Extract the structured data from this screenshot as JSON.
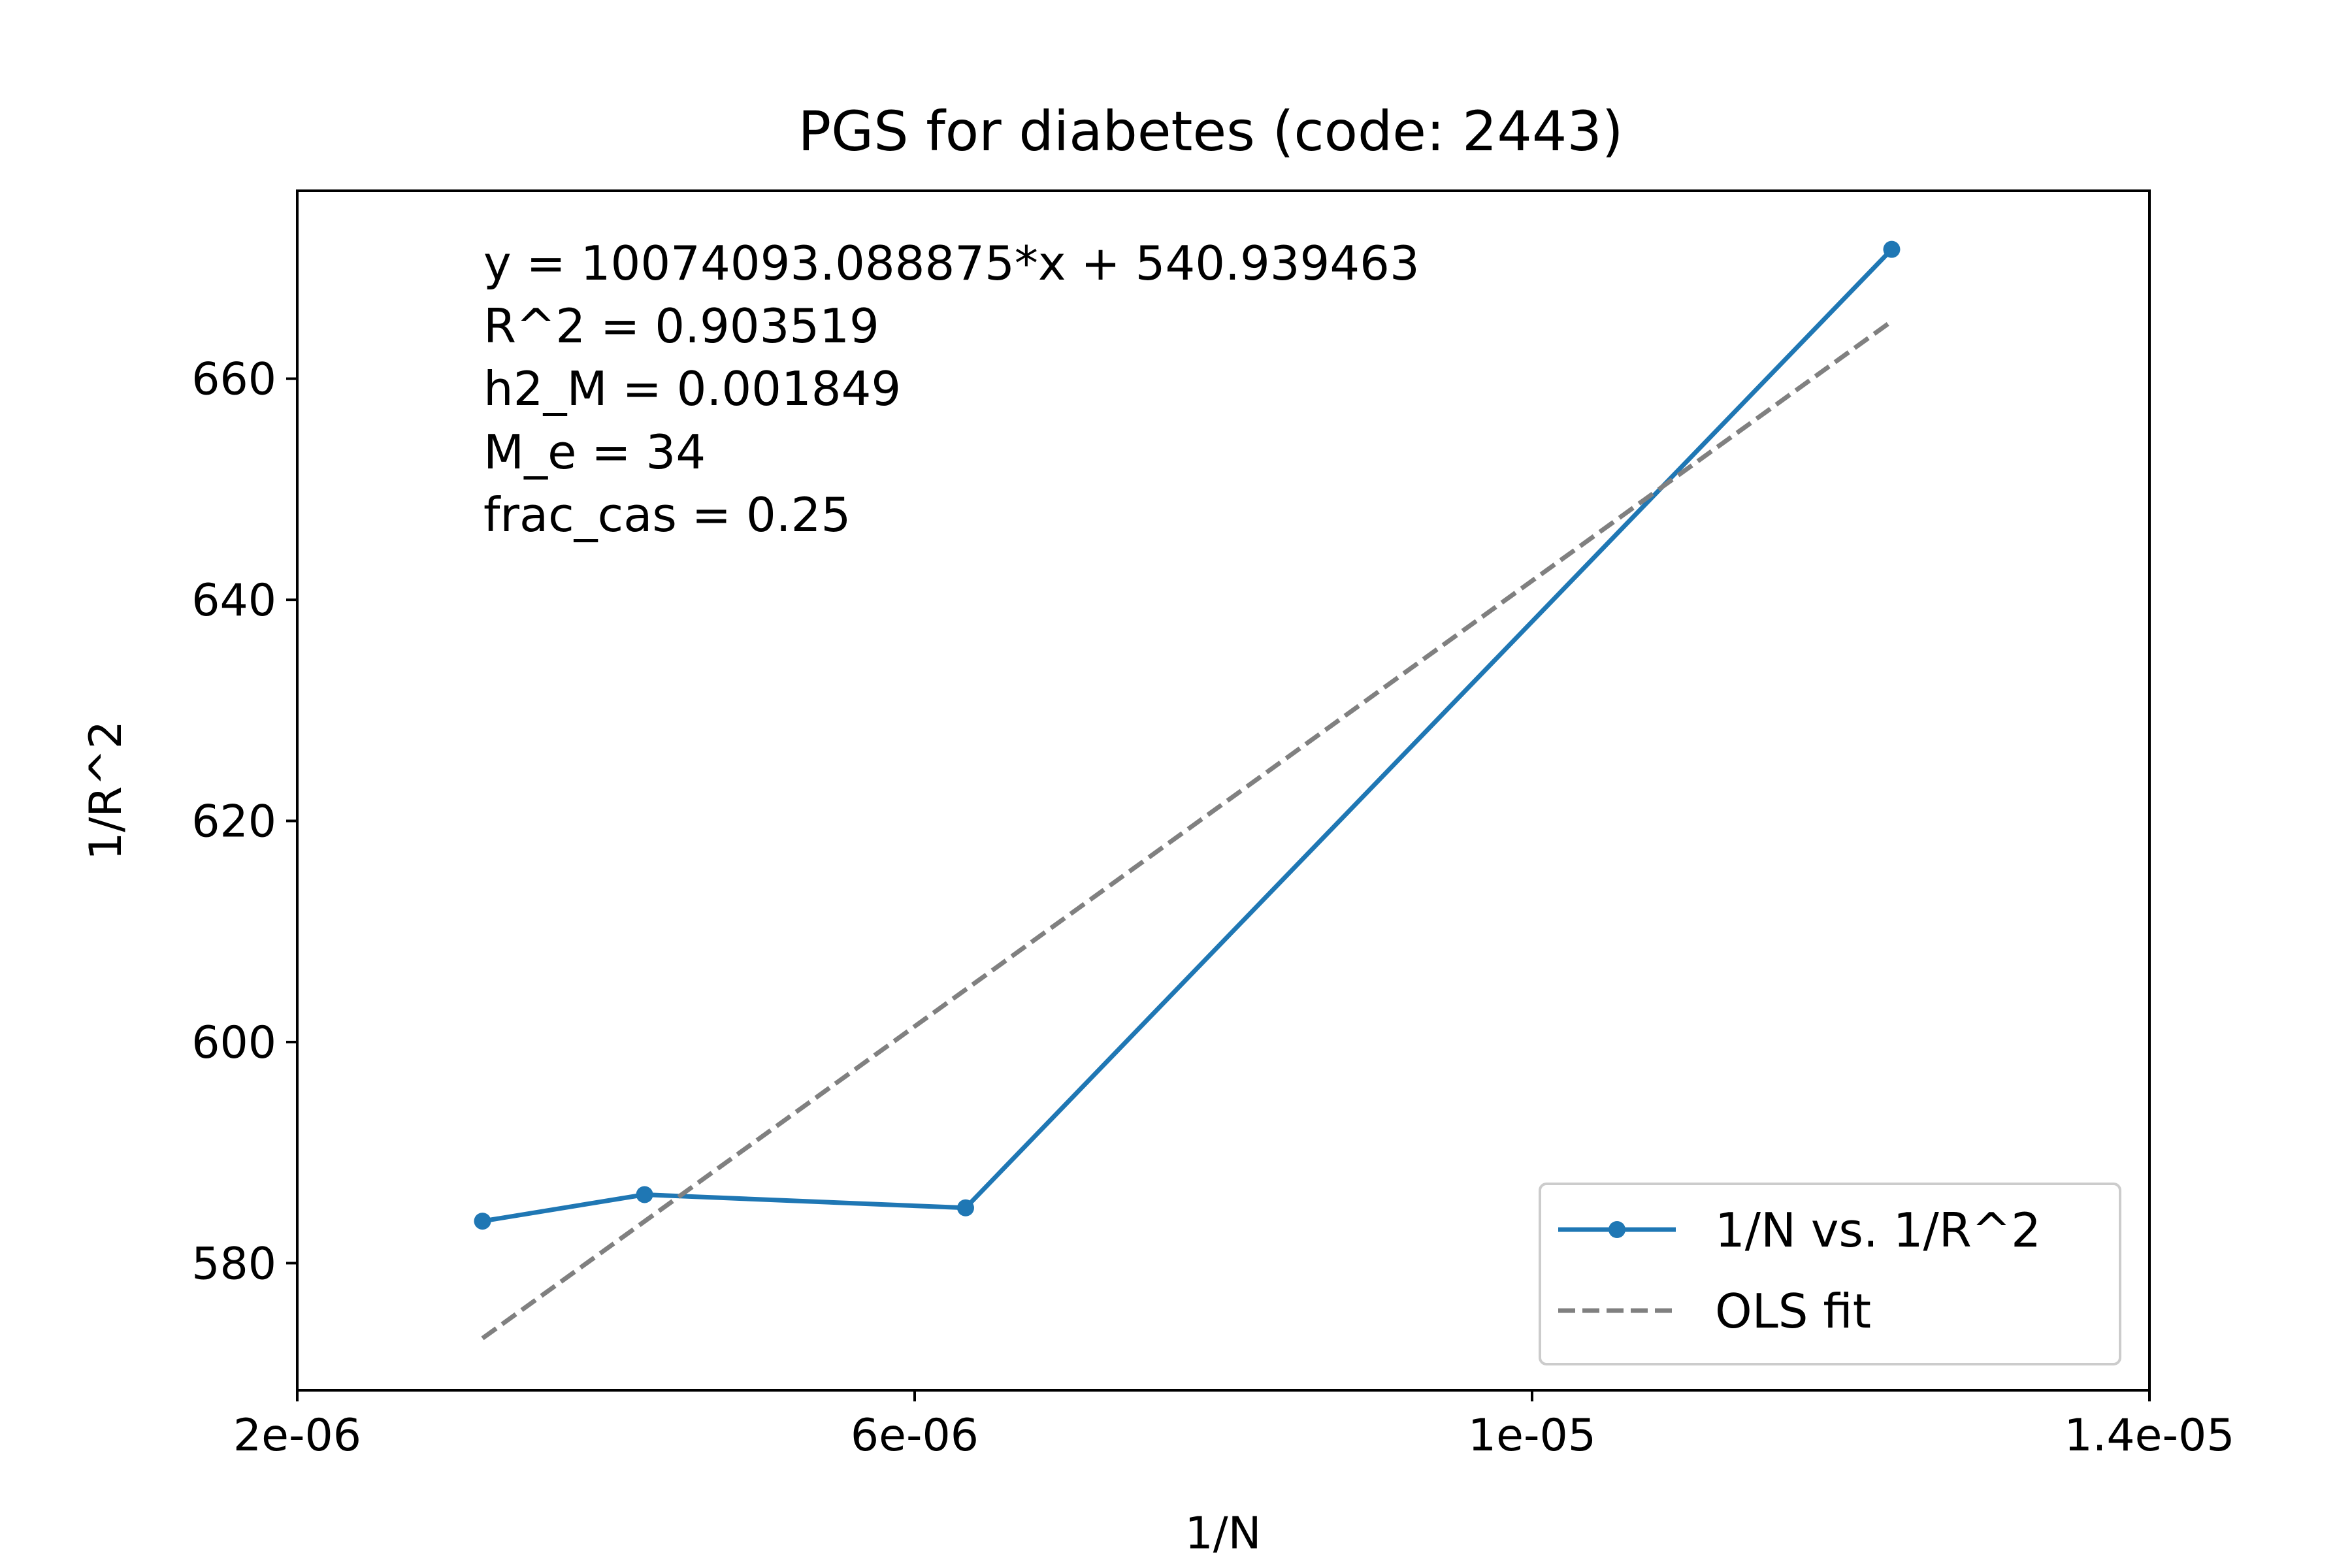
{
  "chart_data": {
    "type": "line",
    "title": "PGS for diabetes (code: 2443)",
    "xlabel": "1/N",
    "ylabel": "1/R^2",
    "xlim": [
      2e-06,
      1.4e-05
    ],
    "ylim": [
      568.5,
      677
    ],
    "x_ticks": [
      2e-06,
      6e-06,
      1e-05,
      1.4e-05
    ],
    "x_tick_labels": [
      "2e-06",
      "6e-06",
      "1e-05",
      "1.4e-05"
    ],
    "y_ticks": [
      580,
      600,
      620,
      640,
      660
    ],
    "y_tick_labels": [
      "580",
      "600",
      "620",
      "640",
      "660"
    ],
    "grid": false,
    "legend_position": "lower-right",
    "series": [
      {
        "name": "1/N vs. 1/R^2",
        "style": "solid-with-markers",
        "color": "#1f77b4",
        "x": [
          3.2e-06,
          4.25e-06,
          6.33e-06,
          1.233e-05
        ],
        "y": [
          583.8,
          586.2,
          585.0,
          671.7
        ]
      },
      {
        "name": "OLS fit",
        "style": "dashed",
        "color": "#808080",
        "x": [
          3.2e-06,
          1.233e-05
        ],
        "y": [
          573.2,
          665.2
        ]
      }
    ],
    "annotations": [
      "y = 10074093.088875*x + 540.939463",
      "R^2 = 0.903519",
      "h2_M = 0.001849",
      "M_e = 34",
      "frac_cas = 0.25"
    ]
  }
}
